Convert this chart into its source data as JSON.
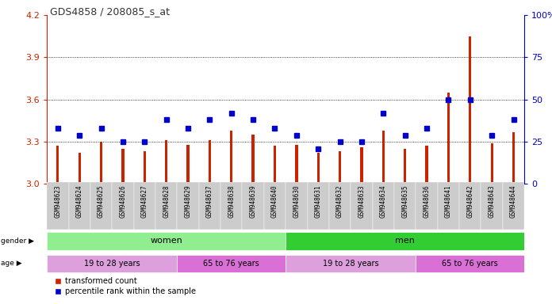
{
  "title": "GDS4858 / 208085_s_at",
  "samples": [
    "GSM948623",
    "GSM948624",
    "GSM948625",
    "GSM948626",
    "GSM948627",
    "GSM948628",
    "GSM948629",
    "GSM948637",
    "GSM948638",
    "GSM948639",
    "GSM948640",
    "GSM948630",
    "GSM948631",
    "GSM948632",
    "GSM948633",
    "GSM948634",
    "GSM948635",
    "GSM948636",
    "GSM948641",
    "GSM948642",
    "GSM948643",
    "GSM948644"
  ],
  "red_values": [
    3.27,
    3.22,
    3.3,
    3.25,
    3.23,
    3.31,
    3.28,
    3.31,
    3.38,
    3.35,
    3.27,
    3.28,
    3.22,
    3.23,
    3.26,
    3.38,
    3.25,
    3.27,
    3.65,
    4.05,
    3.29,
    3.37
  ],
  "blue_values": [
    33,
    29,
    33,
    25,
    25,
    38,
    33,
    38,
    42,
    38,
    33,
    29,
    21,
    25,
    25,
    42,
    29,
    33,
    50,
    50,
    29,
    38
  ],
  "ylim_left": [
    3.0,
    4.2
  ],
  "ylim_right": [
    0,
    100
  ],
  "yticks_left": [
    3.0,
    3.3,
    3.6,
    3.9,
    4.2
  ],
  "yticks_right": [
    0,
    25,
    50,
    75,
    100
  ],
  "grid_vals": [
    3.3,
    3.6,
    3.9
  ],
  "bar_color": "#CC2200",
  "dot_color": "#0000CC",
  "title_color": "#333333",
  "left_tick_color": "#CC2200",
  "right_tick_color": "#0000CC",
  "gender_women_color": "#90EE90",
  "gender_men_color": "#32CD32",
  "age_young_color": "#DDA0DD",
  "age_old_color": "#DA70D6",
  "women_count": 11,
  "men_count": 11,
  "women_young": 6,
  "women_old": 5,
  "men_young": 6,
  "men_old": 5,
  "legend_red": "transformed count",
  "legend_blue": "percentile rank within the sample",
  "bg_color": "#FFFFFF",
  "plot_bg": "#FFFFFF",
  "bar_width": 0.12
}
